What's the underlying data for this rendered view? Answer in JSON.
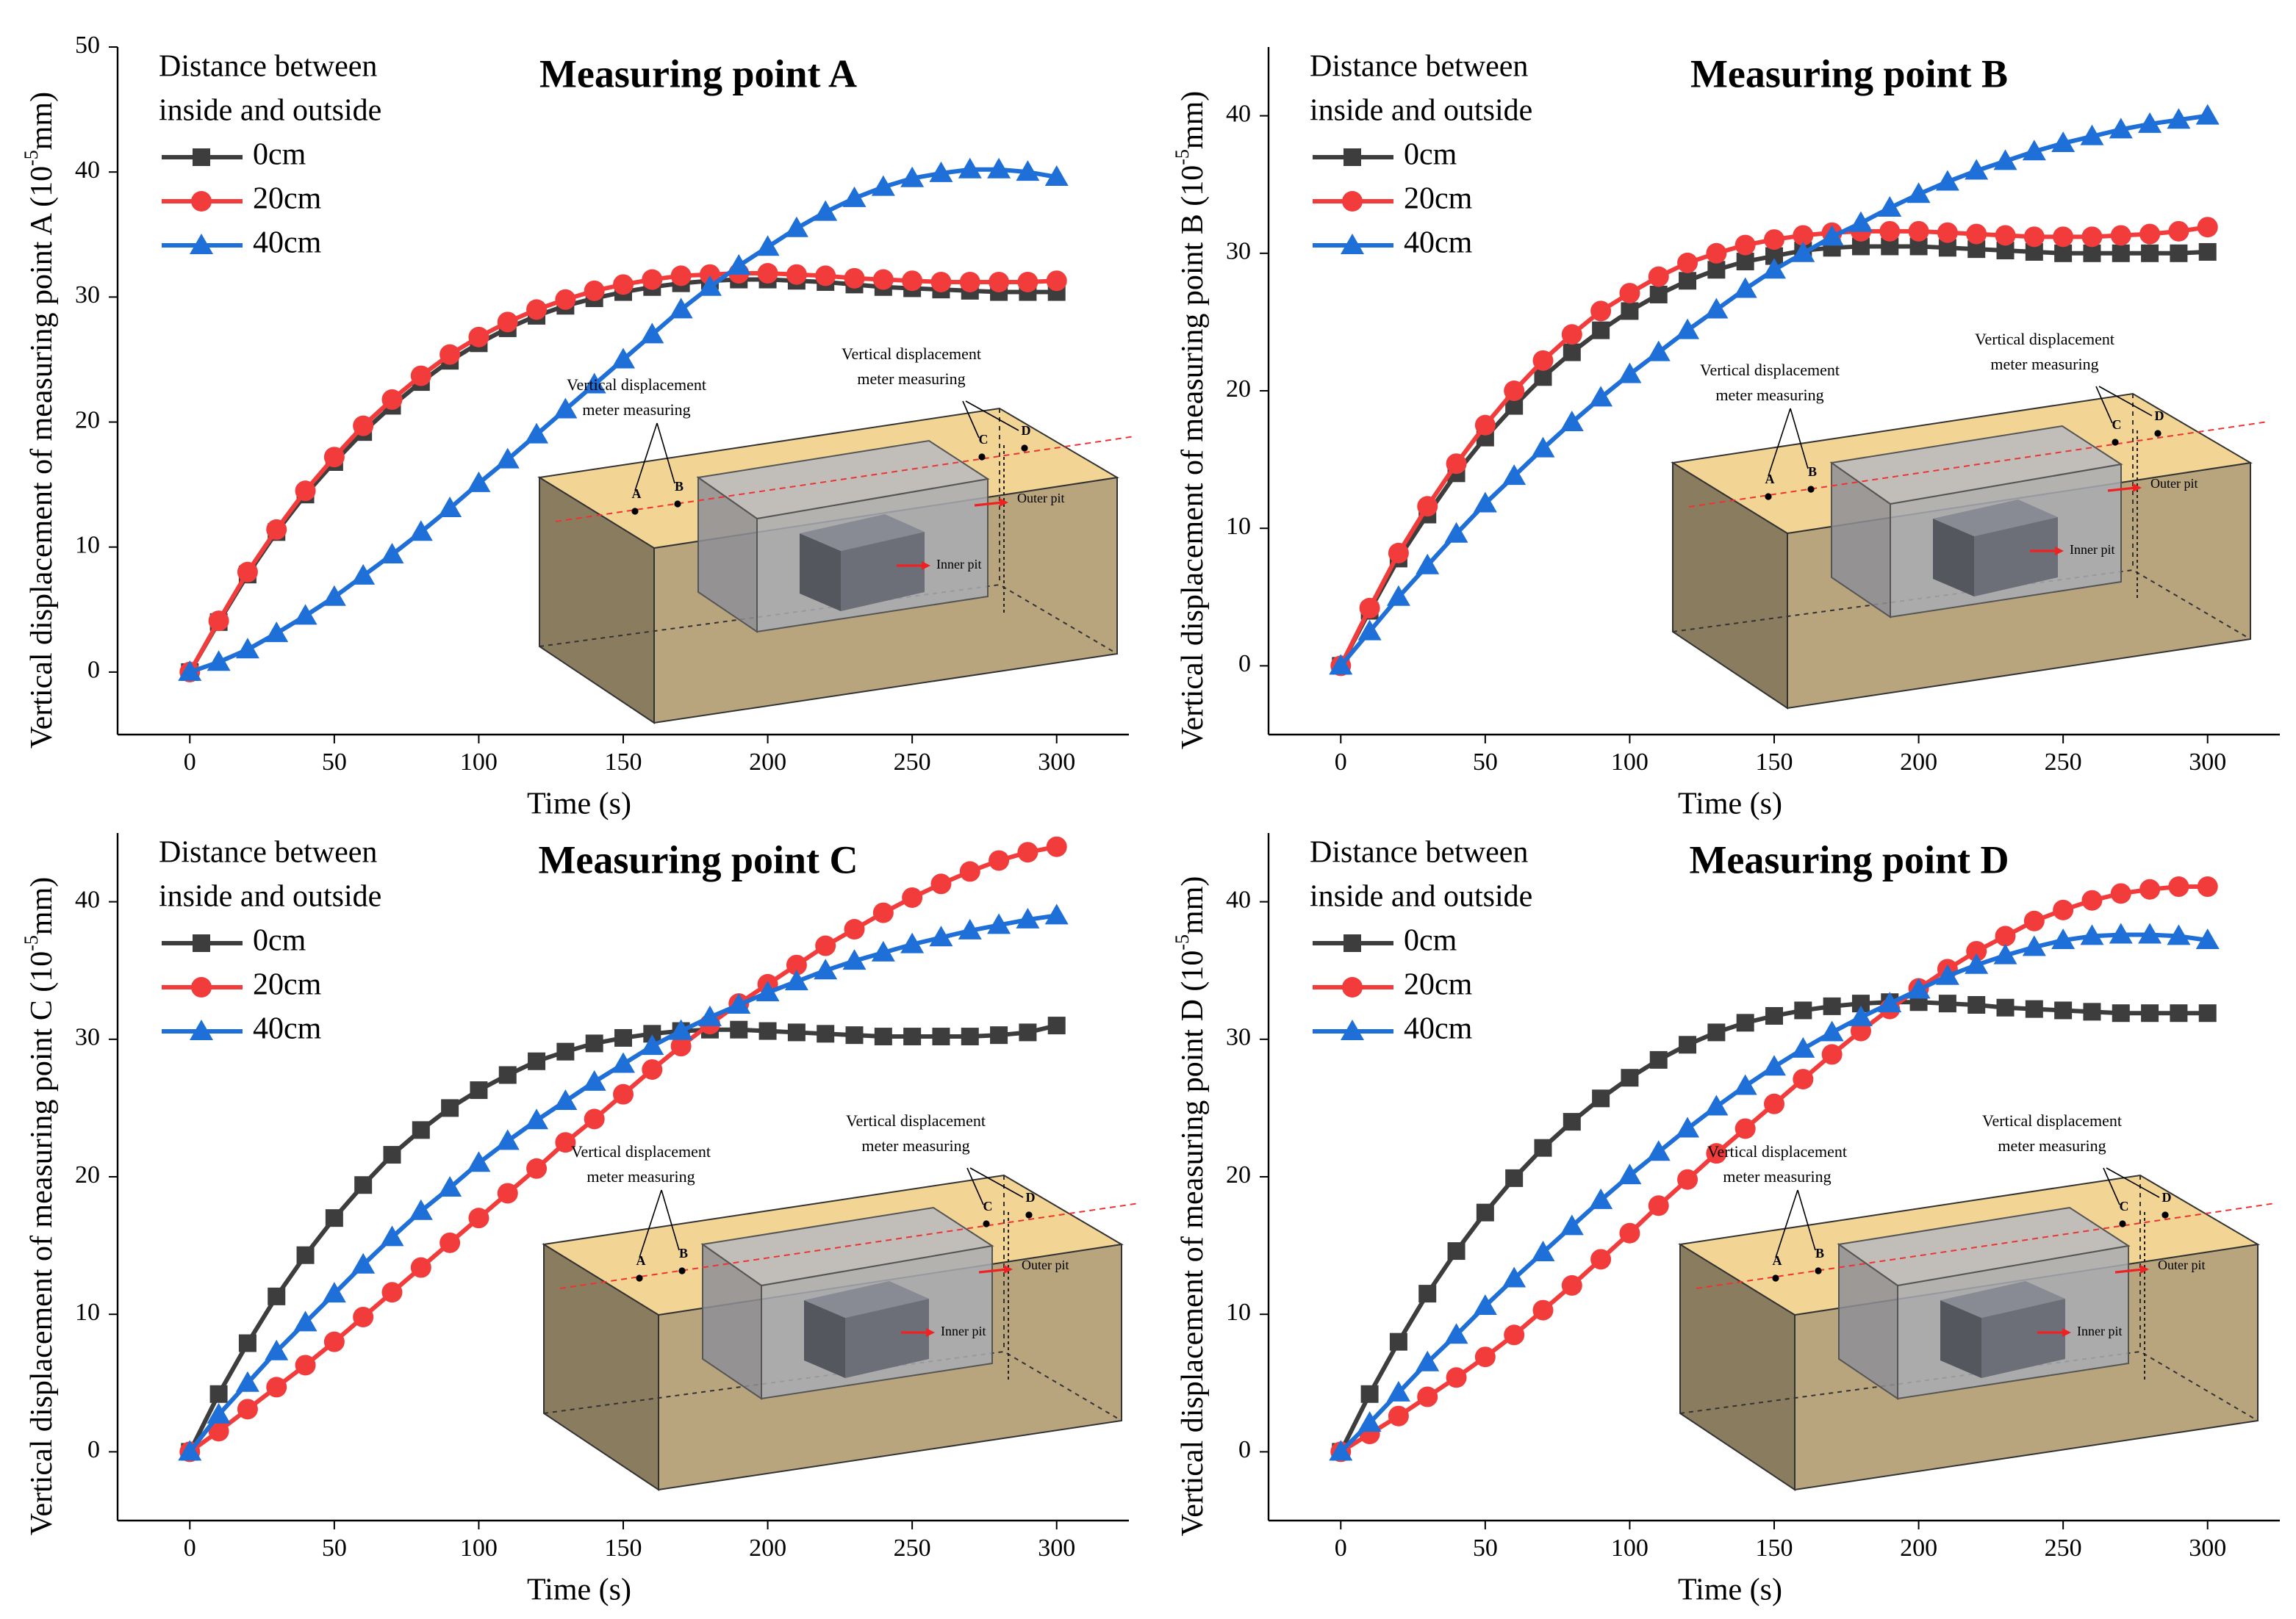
{
  "chart_data": [
    {
      "type": "line",
      "title": "Measuring point A",
      "xlabel": "Time (s)",
      "ylabel": [
        "Vertical displacement of measuring point A (10",
        "-5",
        "mm)"
      ],
      "legend_title": [
        "Distance between",
        "inside and outside"
      ],
      "x": [
        0,
        10,
        20,
        30,
        40,
        50,
        60,
        70,
        80,
        90,
        100,
        110,
        120,
        130,
        140,
        150,
        160,
        170,
        180,
        190,
        200,
        210,
        220,
        230,
        240,
        250,
        260,
        270,
        280,
        290,
        300
      ],
      "xlim": [
        -25,
        325
      ],
      "xticks": [
        0,
        50,
        100,
        150,
        200,
        250,
        300
      ],
      "ylim": [
        -5,
        50
      ],
      "yticks": [
        0,
        10,
        20,
        30,
        40,
        50
      ],
      "series": [
        {
          "name": "0cm",
          "color": "#3d3d3d",
          "marker": "square",
          "values": [
            0,
            4,
            7.8,
            11.2,
            14.2,
            16.8,
            19.2,
            21.3,
            23.2,
            24.9,
            26.3,
            27.5,
            28.5,
            29.3,
            29.9,
            30.4,
            30.8,
            31.1,
            31.3,
            31.4,
            31.4,
            31.3,
            31.2,
            31,
            30.8,
            30.7,
            30.6,
            30.5,
            30.4,
            30.4,
            30.4
          ]
        },
        {
          "name": "20cm",
          "color": "#f23c3c",
          "marker": "circle",
          "values": [
            0,
            4.1,
            8,
            11.4,
            14.5,
            17.2,
            19.7,
            21.8,
            23.7,
            25.4,
            26.8,
            28,
            29,
            29.8,
            30.5,
            31,
            31.4,
            31.7,
            31.8,
            31.9,
            31.9,
            31.8,
            31.7,
            31.5,
            31.4,
            31.3,
            31.2,
            31.2,
            31.2,
            31.2,
            31.3
          ]
        },
        {
          "name": "40cm",
          "color": "#1f6fd8",
          "marker": "triangle",
          "values": [
            0,
            0.8,
            1.8,
            3.1,
            4.5,
            6,
            7.7,
            9.4,
            11.2,
            13.1,
            15.1,
            17,
            19,
            21,
            23,
            25,
            27,
            29,
            30.8,
            32.5,
            34,
            35.5,
            36.8,
            37.9,
            38.8,
            39.5,
            39.9,
            40.2,
            40.2,
            40,
            39.6
          ]
        }
      ],
      "inset": {
        "label_lines": [
          "Vertical displacement",
          "meter measuring"
        ],
        "points": [
          "A",
          "B",
          "C",
          "D"
        ],
        "inner": "Inner pit",
        "outer": "Outer pit"
      }
    },
    {
      "type": "line",
      "title": "Measuring point B",
      "xlabel": "Time (s)",
      "ylabel": [
        "Vertical displacement of measuring point B (10",
        "-5",
        "mm)"
      ],
      "legend_title": [
        "Distance between",
        "inside and outside"
      ],
      "x": [
        0,
        10,
        20,
        30,
        40,
        50,
        60,
        70,
        80,
        90,
        100,
        110,
        120,
        130,
        140,
        150,
        160,
        170,
        180,
        190,
        200,
        210,
        220,
        230,
        240,
        250,
        260,
        270,
        280,
        290,
        300
      ],
      "xlim": [
        -25,
        325
      ],
      "xticks": [
        0,
        50,
        100,
        150,
        200,
        250,
        300
      ],
      "ylim": [
        -5,
        45
      ],
      "yticks": [
        0,
        10,
        20,
        30,
        40
      ],
      "series": [
        {
          "name": "0cm",
          "color": "#3d3d3d",
          "marker": "square",
          "values": [
            0,
            4,
            7.8,
            11,
            14,
            16.6,
            18.9,
            21,
            22.8,
            24.4,
            25.8,
            27,
            28,
            28.8,
            29.4,
            29.8,
            30.2,
            30.4,
            30.5,
            30.5,
            30.5,
            30.4,
            30.3,
            30.2,
            30.1,
            30,
            30,
            30,
            30,
            30,
            30.1
          ]
        },
        {
          "name": "20cm",
          "color": "#f23c3c",
          "marker": "circle",
          "values": [
            0,
            4.2,
            8.2,
            11.6,
            14.7,
            17.5,
            20,
            22.2,
            24.1,
            25.8,
            27.1,
            28.3,
            29.3,
            30,
            30.6,
            31,
            31.3,
            31.5,
            31.6,
            31.6,
            31.6,
            31.5,
            31.4,
            31.3,
            31.2,
            31.2,
            31.2,
            31.3,
            31.4,
            31.6,
            31.9
          ]
        },
        {
          "name": "40cm",
          "color": "#1f6fd8",
          "marker": "triangle",
          "values": [
            0,
            2.5,
            5,
            7.3,
            9.6,
            11.8,
            13.8,
            15.8,
            17.7,
            19.5,
            21.2,
            22.8,
            24.4,
            25.9,
            27.4,
            28.8,
            30,
            31.2,
            32.2,
            33.3,
            34.3,
            35.2,
            36,
            36.7,
            37.4,
            38,
            38.5,
            39,
            39.4,
            39.7,
            40
          ]
        }
      ],
      "inset": {
        "label_lines": [
          "Vertical displacement",
          "meter measuring"
        ],
        "points": [
          "A",
          "B",
          "C",
          "D"
        ],
        "inner": "Inner pit",
        "outer": "Outer pit"
      }
    },
    {
      "type": "line",
      "title": "Measuring point C",
      "xlabel": "Time (s)",
      "ylabel": [
        "Vertical displacement of measuring point C (10",
        "-5",
        "mm)"
      ],
      "legend_title": [
        "Distance between",
        "inside and outside"
      ],
      "x": [
        0,
        10,
        20,
        30,
        40,
        50,
        60,
        70,
        80,
        90,
        100,
        110,
        120,
        130,
        140,
        150,
        160,
        170,
        180,
        190,
        200,
        210,
        220,
        230,
        240,
        250,
        260,
        270,
        280,
        290,
        300
      ],
      "xlim": [
        -25,
        325
      ],
      "xticks": [
        0,
        50,
        100,
        150,
        200,
        250,
        300
      ],
      "ylim": [
        -5,
        45
      ],
      "yticks": [
        0,
        10,
        20,
        30,
        40
      ],
      "series": [
        {
          "name": "0cm",
          "color": "#3d3d3d",
          "marker": "square",
          "values": [
            0,
            4.2,
            7.9,
            11.3,
            14.3,
            17,
            19.4,
            21.6,
            23.4,
            25,
            26.3,
            27.4,
            28.4,
            29.1,
            29.7,
            30.1,
            30.4,
            30.6,
            30.7,
            30.7,
            30.6,
            30.5,
            30.4,
            30.3,
            30.2,
            30.2,
            30.2,
            30.2,
            30.3,
            30.5,
            31
          ]
        },
        {
          "name": "20cm",
          "color": "#f23c3c",
          "marker": "circle",
          "values": [
            0,
            1.5,
            3.1,
            4.7,
            6.3,
            8,
            9.8,
            11.6,
            13.4,
            15.2,
            17,
            18.8,
            20.6,
            22.5,
            24.2,
            26,
            27.8,
            29.5,
            31.1,
            32.6,
            34,
            35.4,
            36.8,
            38,
            39.2,
            40.3,
            41.3,
            42.2,
            43,
            43.6,
            44
          ]
        },
        {
          "name": "40cm",
          "color": "#1f6fd8",
          "marker": "triangle",
          "values": [
            0,
            2.7,
            5,
            7.3,
            9.4,
            11.5,
            13.6,
            15.6,
            17.5,
            19.2,
            21,
            22.6,
            24.1,
            25.5,
            26.9,
            28.2,
            29.5,
            30.6,
            31.6,
            32.5,
            33.4,
            34.2,
            35,
            35.7,
            36.3,
            36.9,
            37.4,
            37.9,
            38.3,
            38.7,
            39
          ]
        }
      ],
      "inset": {
        "label_lines": [
          "Vertical displacement",
          "meter measuring"
        ],
        "points": [
          "A",
          "B",
          "C",
          "D"
        ],
        "inner": "Inner pit",
        "outer": "Outer pit"
      }
    },
    {
      "type": "line",
      "title": "Measuring point D",
      "xlabel": "Time (s)",
      "ylabel": [
        "Vertical displacement of measuring point D (10",
        "-5",
        "mm)"
      ],
      "legend_title": [
        "Distance between",
        "inside and outside"
      ],
      "x": [
        0,
        10,
        20,
        30,
        40,
        50,
        60,
        70,
        80,
        90,
        100,
        110,
        120,
        130,
        140,
        150,
        160,
        170,
        180,
        190,
        200,
        210,
        220,
        230,
        240,
        250,
        260,
        270,
        280,
        290,
        300
      ],
      "xlim": [
        -25,
        325
      ],
      "xticks": [
        0,
        50,
        100,
        150,
        200,
        250,
        300
      ],
      "ylim": [
        -5,
        45
      ],
      "yticks": [
        0,
        10,
        20,
        30,
        40
      ],
      "series": [
        {
          "name": "0cm",
          "color": "#3d3d3d",
          "marker": "square",
          "values": [
            0,
            4.2,
            8,
            11.5,
            14.6,
            17.4,
            19.9,
            22.1,
            24,
            25.7,
            27.2,
            28.5,
            29.6,
            30.5,
            31.2,
            31.7,
            32.1,
            32.4,
            32.6,
            32.7,
            32.7,
            32.6,
            32.5,
            32.3,
            32.2,
            32.1,
            32,
            31.9,
            31.9,
            31.9,
            31.9
          ]
        },
        {
          "name": "20cm",
          "color": "#f23c3c",
          "marker": "circle",
          "values": [
            0,
            1.3,
            2.6,
            4,
            5.4,
            6.9,
            8.5,
            10.3,
            12.1,
            14,
            15.9,
            17.9,
            19.8,
            21.7,
            23.5,
            25.3,
            27.1,
            28.9,
            30.6,
            32.2,
            33.7,
            35.1,
            36.4,
            37.5,
            38.6,
            39.4,
            40.1,
            40.6,
            40.9,
            41.1,
            41.1
          ]
        },
        {
          "name": "40cm",
          "color": "#1f6fd8",
          "marker": "triangle",
          "values": [
            0,
            2.1,
            4.3,
            6.5,
            8.5,
            10.6,
            12.6,
            14.5,
            16.4,
            18.3,
            20.1,
            21.8,
            23.5,
            25.1,
            26.6,
            28,
            29.3,
            30.5,
            31.6,
            32.6,
            33.6,
            34.6,
            35.4,
            36.1,
            36.7,
            37.2,
            37.5,
            37.6,
            37.6,
            37.5,
            37.2
          ]
        }
      ],
      "inset": {
        "label_lines": [
          "Vertical displacement",
          "meter measuring"
        ],
        "points": [
          "A",
          "B",
          "C",
          "D"
        ],
        "inner": "Inner pit",
        "outer": "Outer pit"
      }
    }
  ]
}
